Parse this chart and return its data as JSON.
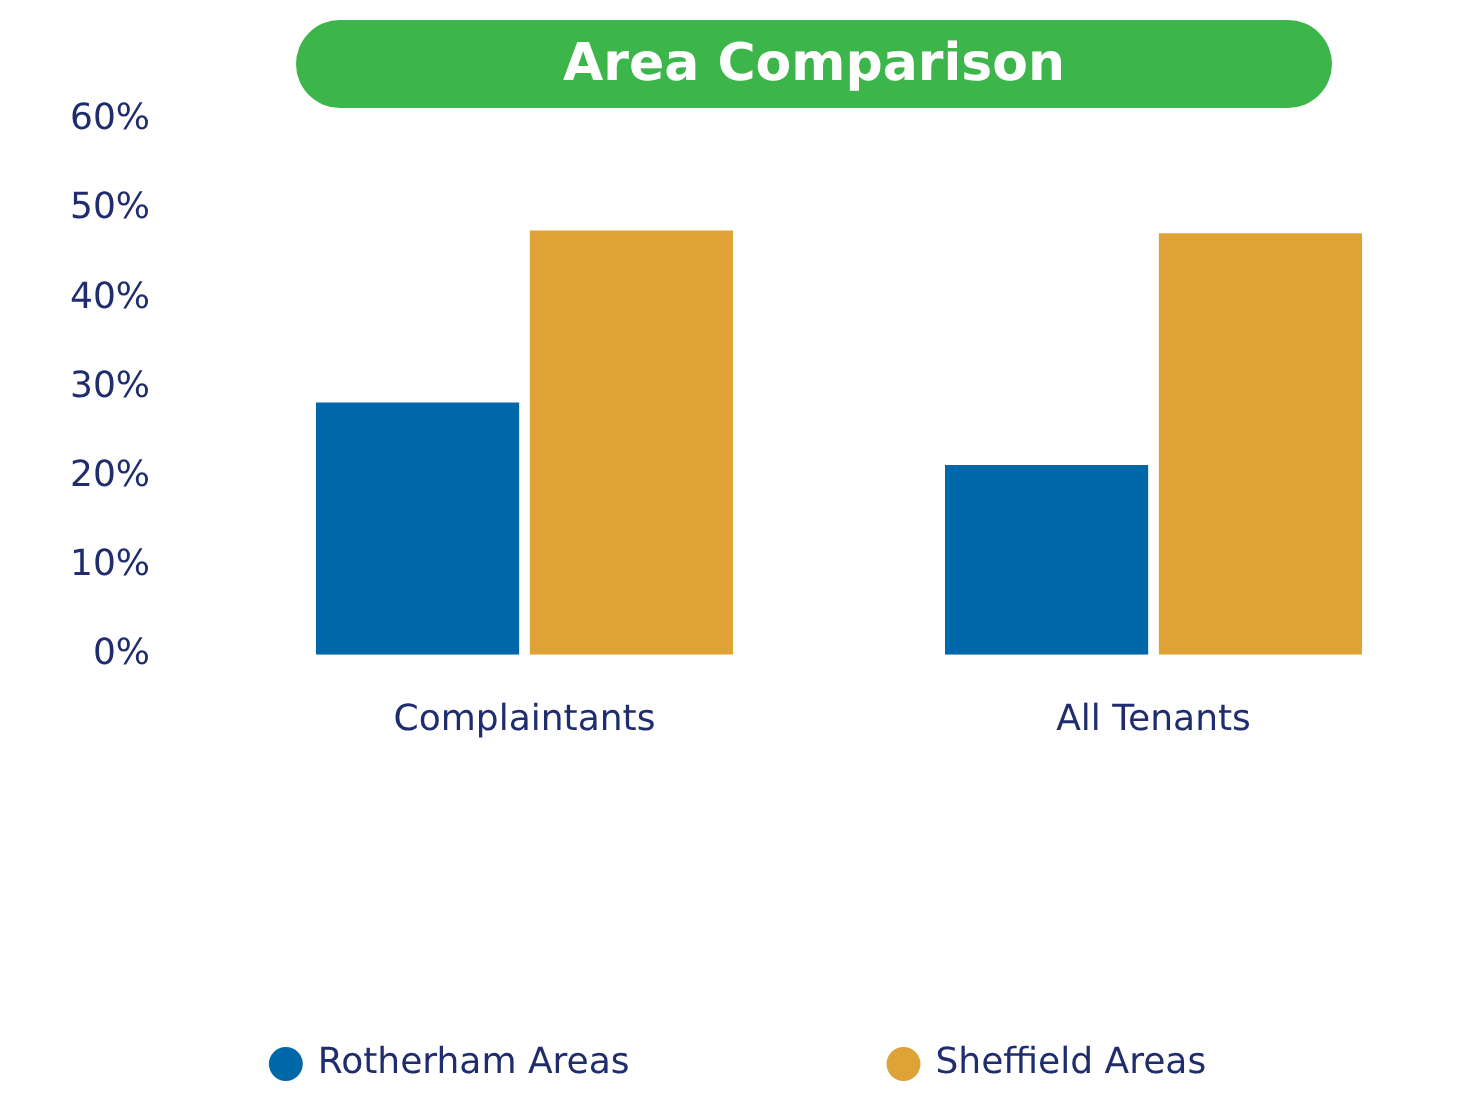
{
  "chart_data": {
    "type": "bar",
    "title": "Area Comparison",
    "categories": [
      "Complaintants",
      "All Tenants"
    ],
    "series": [
      {
        "name": "Rotherham Areas",
        "color": "#0068a8",
        "values": [
          28.3,
          21.3
        ]
      },
      {
        "name": "Sheffield Areas",
        "color": "#dea237",
        "values": [
          47.6,
          47.3
        ]
      }
    ],
    "ylim": [
      0,
      60
    ],
    "yticks": [
      {
        "value": 0,
        "label": "0%"
      },
      {
        "value": 10,
        "label": "10%"
      },
      {
        "value": 20,
        "label": "20%"
      },
      {
        "value": 30,
        "label": "30%"
      },
      {
        "value": 40,
        "label": "40%"
      },
      {
        "value": 50,
        "label": "50%"
      },
      {
        "value": 60,
        "label": "60%"
      }
    ],
    "grid": false,
    "legend": "bottom"
  }
}
